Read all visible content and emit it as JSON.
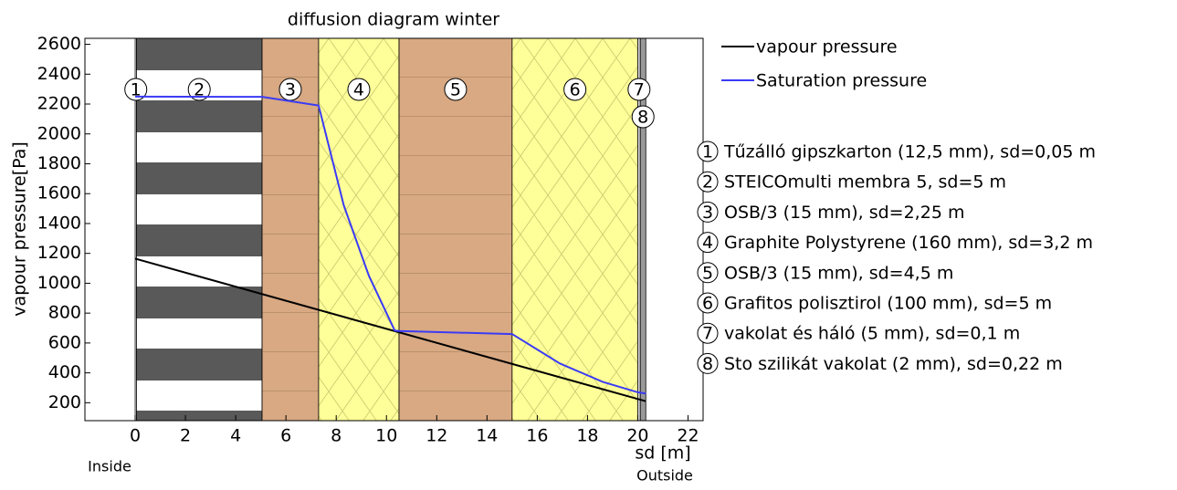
{
  "chart_data": {
    "type": "line",
    "title": "diffusion diagram winter",
    "x_label": "sd [m]",
    "y_label": "vapour pressure[Pa]",
    "inside_label": "Inside",
    "outside_label": "Outside",
    "xlim": [
      -2,
      22.6
    ],
    "ylim": [
      80,
      2640
    ],
    "xticks": [
      0,
      2,
      4,
      6,
      8,
      10,
      12,
      14,
      16,
      18,
      20,
      22
    ],
    "yticks": [
      200,
      400,
      600,
      800,
      1000,
      1200,
      1400,
      1600,
      1800,
      2000,
      2200,
      2400,
      2600
    ],
    "layers": [
      {
        "number": "1",
        "name": "Tűzálló gipszkarton (12,5 mm), sd=0,05 m",
        "start": 0,
        "end": 0.05,
        "fill": "#ffffff"
      },
      {
        "number": "2",
        "name": "STEICOmulti membra 5, sd=5 m",
        "start": 0.05,
        "end": 5.05,
        "fill": "url(#stripes)"
      },
      {
        "number": "3",
        "name": "OSB/3 (15 mm), sd=2,25 m",
        "start": 5.05,
        "end": 7.3,
        "fill": "url(#osb)"
      },
      {
        "number": "4",
        "name": "Graphite Polystyrene (160 mm), sd=3,2 m",
        "start": 7.3,
        "end": 10.5,
        "fill": "url(#insul)"
      },
      {
        "number": "5",
        "name": "OSB/3 (15 mm), sd=4,5 m",
        "start": 10.5,
        "end": 15,
        "fill": "url(#osb)"
      },
      {
        "number": "6",
        "name": "Grafitos polisztirol (100 mm), sd=5 m",
        "start": 15,
        "end": 20,
        "fill": "url(#insul)"
      },
      {
        "number": "7",
        "name": "vakolat és háló (5 mm), sd=0,1 m",
        "start": 20,
        "end": 20.1,
        "fill": "#dddddd"
      },
      {
        "number": "8",
        "name": "Sto szilikát vakolat (2 mm), sd=0,22 m",
        "start": 20.1,
        "end": 20.32,
        "fill": "#999999"
      }
    ],
    "series": [
      {
        "name": "vapour pressure",
        "color": "#000000",
        "x": [
          0,
          20.32
        ],
        "values": [
          1165,
          210
        ]
      },
      {
        "name": "Saturation pressure",
        "color": "#3b3bf5",
        "x": [
          0,
          5.05,
          7.3,
          8.3,
          9.3,
          10.33,
          10.5,
          15,
          16.9,
          18.6,
          20,
          20.32
        ],
        "values": [
          2250,
          2248,
          2190,
          1522,
          1050,
          683,
          680,
          660,
          463,
          340,
          270,
          262
        ]
      }
    ]
  }
}
